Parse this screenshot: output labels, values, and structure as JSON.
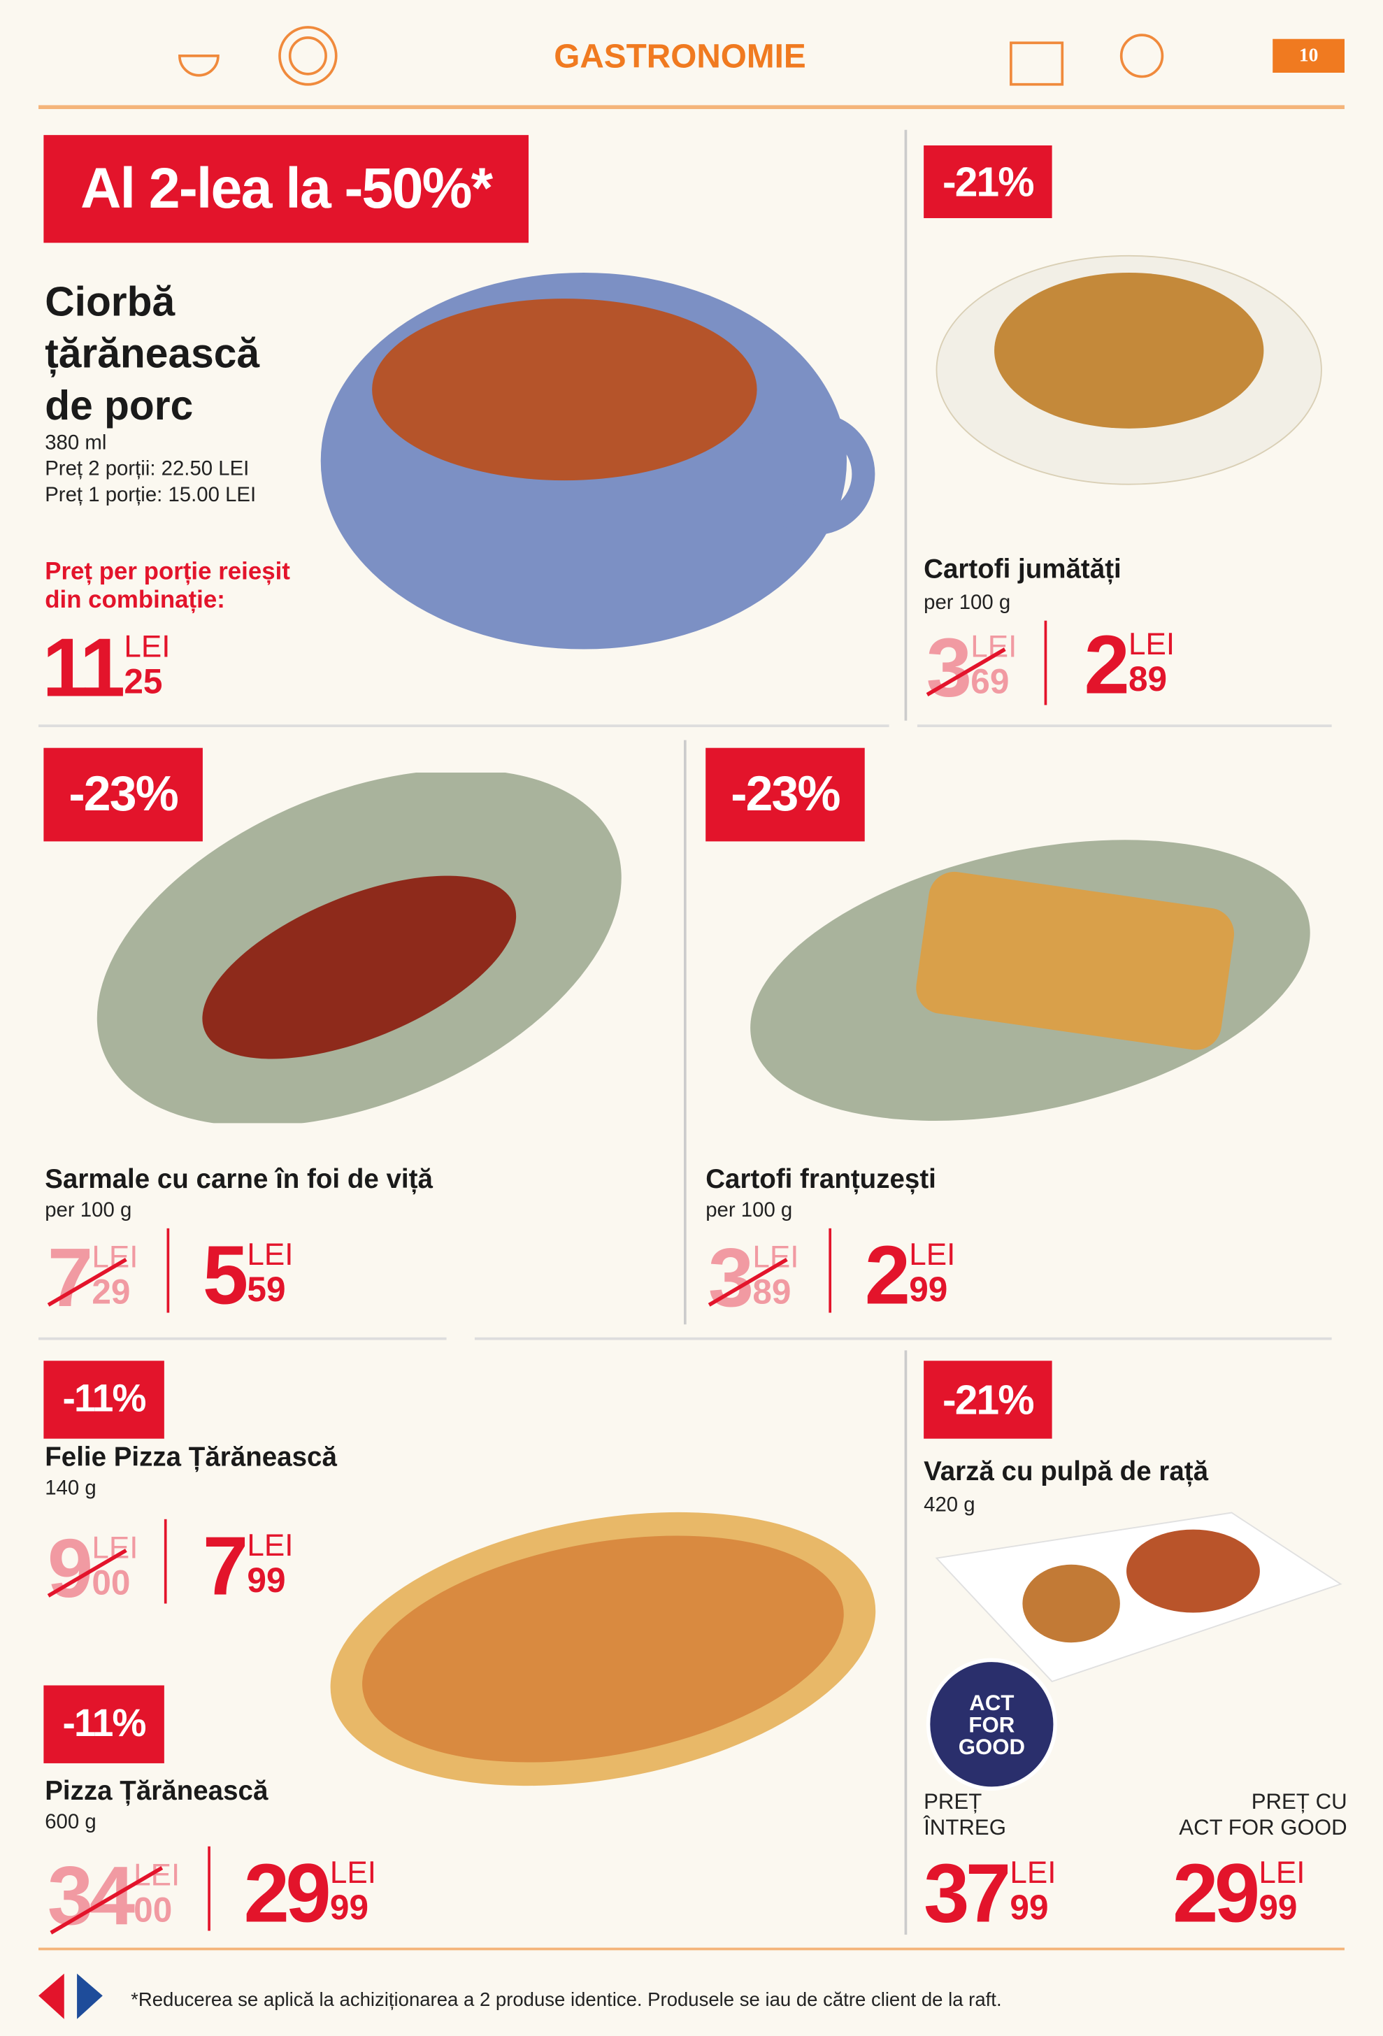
{
  "header": {
    "title": "GASTRONOMIE",
    "page": "10"
  },
  "products": [
    {
      "badge": "Al 2-lea la -50%*",
      "name": "Ciorbă țărănească de porc",
      "lines": [
        "380 ml",
        "Preț 2 porții: 22.50 LEI",
        "Preț 1 porție: 15.00 LEI"
      ],
      "note": "Preț per porție reieșit din combinație:",
      "price": {
        "int": "11",
        "dec": "25",
        "unit": "LEI"
      }
    },
    {
      "badge": "-21%",
      "name": "Cartofi jumătăți",
      "lines": [
        "per 100 g"
      ],
      "old_price": {
        "int": "3",
        "dec": "69",
        "unit": "LEI"
      },
      "price": {
        "int": "2",
        "dec": "89",
        "unit": "LEI"
      }
    },
    {
      "badge": "-23%",
      "name": "Sarmale cu carne în foi de viță",
      "lines": [
        "per 100 g"
      ],
      "old_price": {
        "int": "7",
        "dec": "29",
        "unit": "LEI"
      },
      "price": {
        "int": "5",
        "dec": "59",
        "unit": "LEI"
      }
    },
    {
      "badge": "-23%",
      "name": "Cartofi franțuzești",
      "lines": [
        "per 100 g"
      ],
      "old_price": {
        "int": "3",
        "dec": "89",
        "unit": "LEI"
      },
      "price": {
        "int": "2",
        "dec": "99",
        "unit": "LEI"
      }
    },
    {
      "badge": "-11%",
      "name": "Felie Pizza Țărănească",
      "lines": [
        "140 g"
      ],
      "old_price": {
        "int": "9",
        "dec": "00",
        "unit": "LEI"
      },
      "price": {
        "int": "7",
        "dec": "99",
        "unit": "LEI"
      }
    },
    {
      "badge": "-11%",
      "name": "Pizza Țărănească",
      "lines": [
        "600 g"
      ],
      "old_price": {
        "int": "34",
        "dec": "00",
        "unit": "LEI"
      },
      "price": {
        "int": "29",
        "dec": "99",
        "unit": "LEI"
      }
    },
    {
      "badge": "-21%",
      "name": "Varză cu pulpă de rață",
      "lines": [
        "420 g"
      ],
      "logo": [
        "ACT",
        "FOR",
        "GOOD"
      ],
      "full_label": [
        "PREȚ",
        "ÎNTREG"
      ],
      "afg_label": [
        "PREȚ CU",
        "ACT FOR GOOD"
      ],
      "full_price": {
        "int": "37",
        "dec": "99",
        "unit": "LEI"
      },
      "price": {
        "int": "29",
        "dec": "99",
        "unit": "LEI"
      }
    }
  ],
  "footer": {
    "note": "*Reducerea se aplică la achiziționarea a 2 produse identice. Produsele se iau de către client de la raft."
  }
}
